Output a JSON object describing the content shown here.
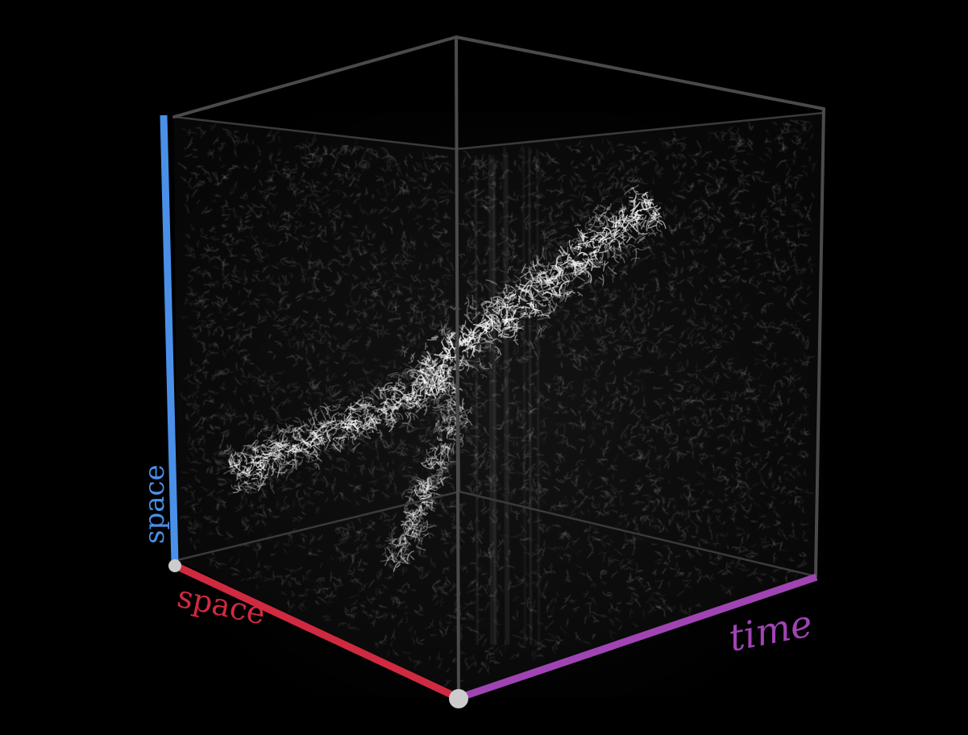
{
  "diagram": {
    "background_color": "#000000",
    "axes": {
      "vertical": {
        "label": "space",
        "color": "#4a90e8"
      },
      "left_horizontal": {
        "label": "space",
        "color": "#d02a40"
      },
      "right_horizontal": {
        "label": "time",
        "color": "#a044b4"
      }
    },
    "cube_edge_color": "#555555",
    "vertex_marker_color": "#cccccc",
    "particle_color": "#ffffff"
  }
}
